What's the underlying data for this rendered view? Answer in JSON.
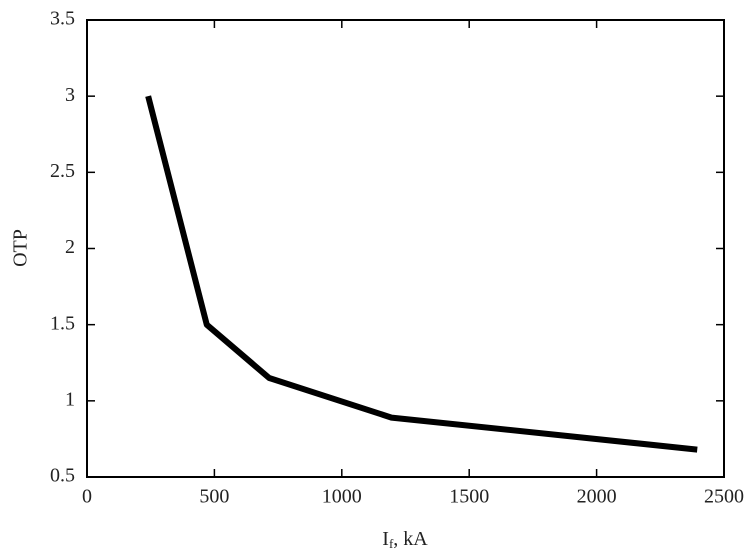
{
  "chart_data": {
    "type": "line",
    "ylabel": "OTP",
    "xlabel": [
      "I",
      "f",
      ", kA"
    ],
    "x": [
      240,
      470,
      715,
      1195,
      2395
    ],
    "series": [
      {
        "values": [
          3.0,
          1.5,
          1.15,
          0.89,
          0.68
        ],
        "color": "#000000"
      }
    ],
    "xlim": [
      0,
      2500
    ],
    "xticks": [
      0,
      500,
      1000,
      1500,
      2000,
      2500
    ],
    "ylim": [
      0.5,
      3.5
    ],
    "yticks": [
      0.5,
      1,
      1.5,
      2,
      2.5,
      3,
      3.5
    ],
    "grid": false
  }
}
